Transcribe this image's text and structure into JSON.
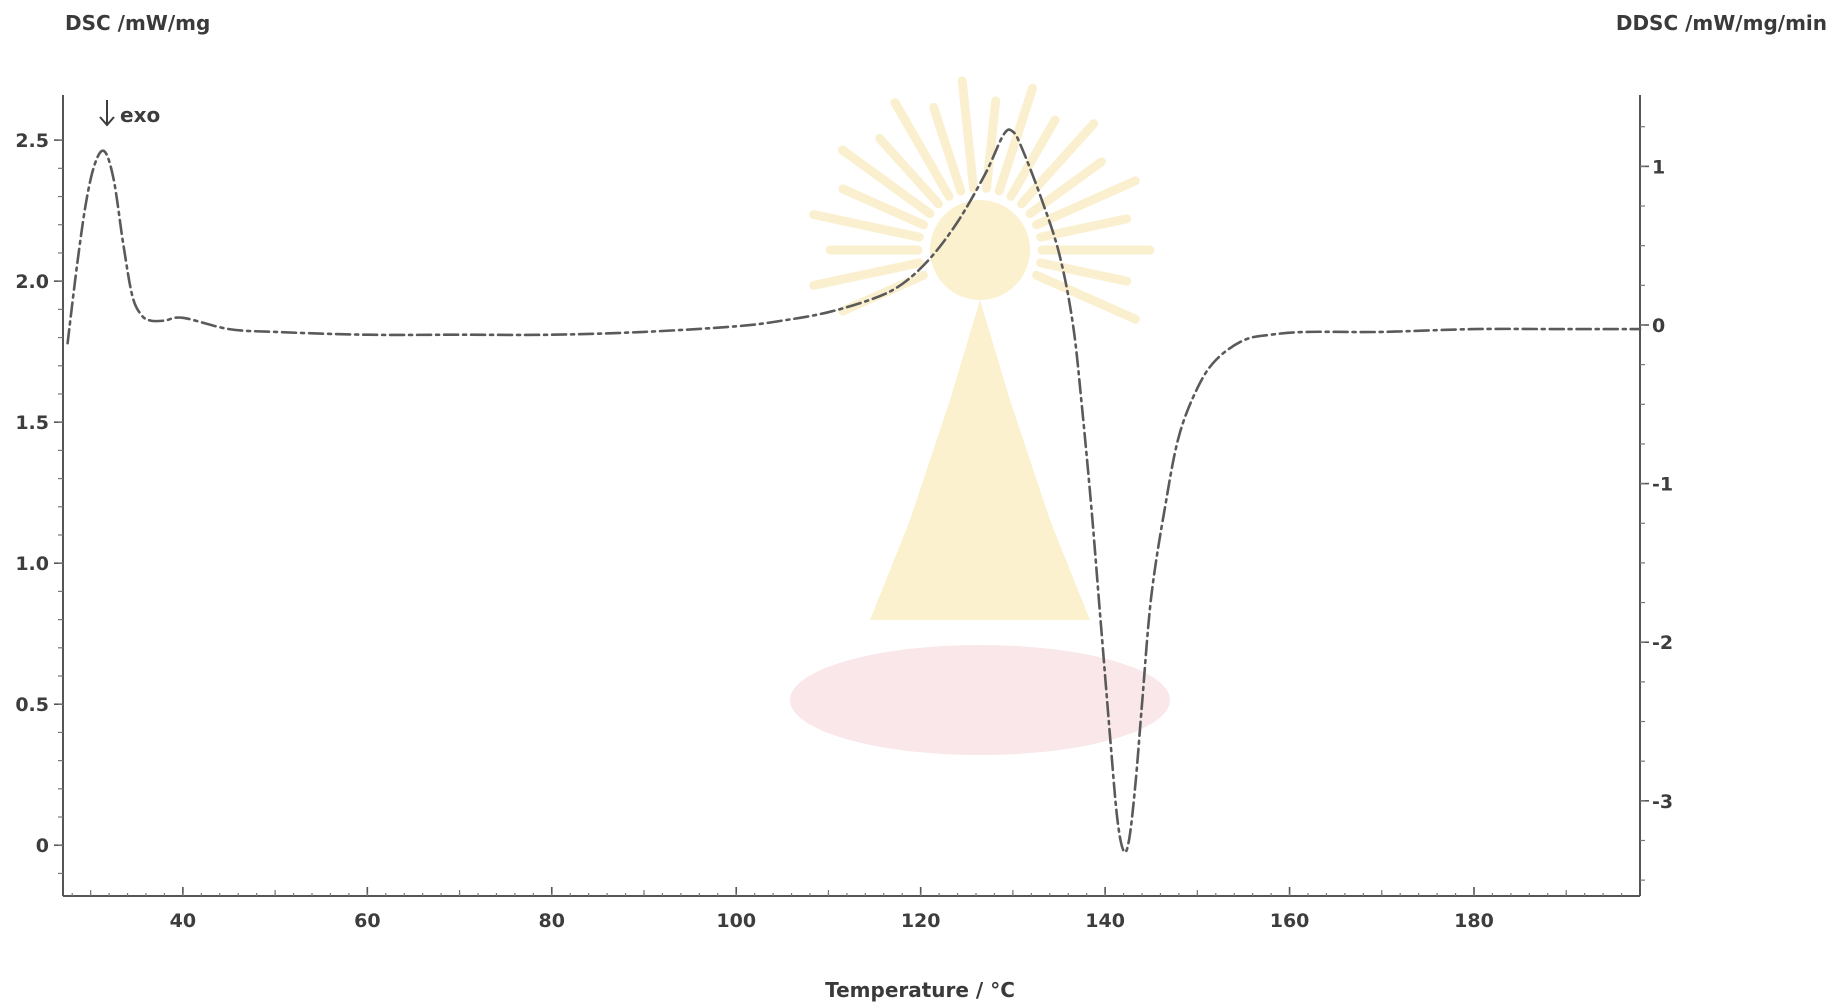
{
  "chart_data": {
    "type": "line",
    "title": "",
    "xlabel": "Temperature / °C",
    "ylabel_left": "DSC /mW/mg",
    "ylabel_right": "DDSC /mW/mg/min",
    "xlim": [
      27,
      198
    ],
    "ylim_left": [
      -0.18,
      2.66
    ],
    "ylim_right": [
      -3.6,
      1.45
    ],
    "x_ticks": [
      40,
      60,
      80,
      100,
      120,
      140,
      160,
      180
    ],
    "x_tick_labels": [
      "40",
      "60",
      "80",
      "100",
      "120",
      "140",
      "160",
      "180"
    ],
    "y_left_ticks": [
      0,
      0.5,
      1.0,
      1.5,
      2.0,
      2.5
    ],
    "y_left_tick_labels": [
      "0",
      "0.5",
      "1.0",
      "1.5",
      "2.0",
      "2.5"
    ],
    "y_right_ticks": [
      -3,
      -2,
      -1,
      0,
      1
    ],
    "y_right_tick_labels": [
      "-3",
      "-2",
      "-1",
      "0",
      "1"
    ],
    "grid": false,
    "annotation": "exo",
    "series": [
      {
        "axis": "left",
        "style": "dash-dot",
        "x": [
          27.5,
          28.5,
          29.5,
          30.5,
          31.5,
          32.5,
          33.5,
          34.5,
          35.5,
          36.5,
          38,
          40,
          45,
          50,
          60,
          70,
          80,
          90,
          100,
          105,
          110,
          115,
          118,
          121,
          124,
          127,
          129,
          130,
          131,
          133,
          135,
          136.5,
          137.5,
          138.5,
          139.5,
          140.5,
          141.3,
          142,
          142.6,
          143.3,
          144,
          145,
          146.5,
          148,
          150,
          152,
          155,
          158,
          162,
          170,
          180,
          190,
          198
        ],
        "y": [
          1.78,
          2.05,
          2.28,
          2.42,
          2.46,
          2.36,
          2.14,
          1.95,
          1.88,
          1.86,
          1.86,
          1.87,
          1.83,
          1.82,
          1.81,
          1.81,
          1.81,
          1.82,
          1.84,
          1.86,
          1.89,
          1.94,
          1.99,
          2.08,
          2.21,
          2.38,
          2.52,
          2.53,
          2.47,
          2.3,
          2.1,
          1.85,
          1.55,
          1.2,
          0.8,
          0.4,
          0.1,
          -0.02,
          0.02,
          0.22,
          0.5,
          0.88,
          1.2,
          1.45,
          1.62,
          1.72,
          1.79,
          1.81,
          1.82,
          1.82,
          1.83,
          1.83,
          1.83
        ]
      }
    ]
  }
}
